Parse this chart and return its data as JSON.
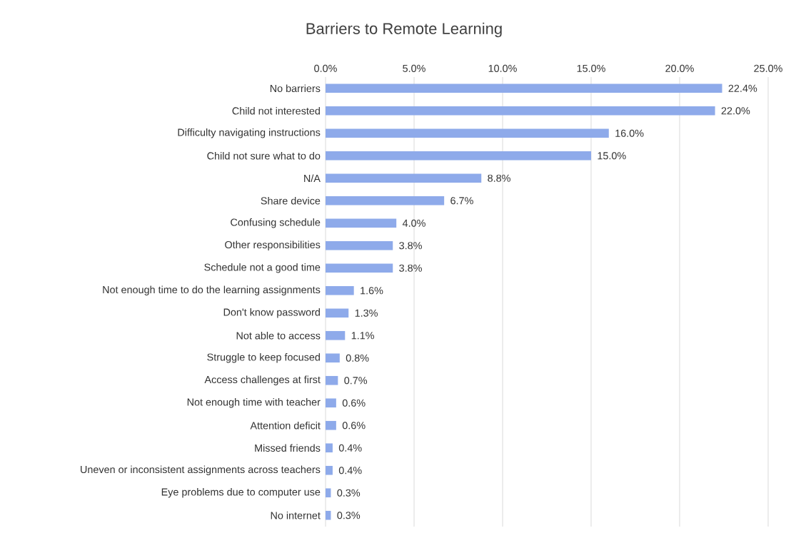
{
  "chart_data": {
    "type": "bar",
    "orientation": "horizontal",
    "title": "Barriers to Remote Learning",
    "categories": [
      "No barriers",
      "Child not interested",
      "Difficulty navigating instructions",
      "Child not sure what to do",
      "N/A",
      "Share device",
      "Confusing schedule",
      "Other responsibilities",
      "Schedule not a good time",
      "Not enough time to do the learning assignments",
      "Don't know password",
      "Not able to access",
      "Struggle to keep focused",
      "Access challenges at first",
      "Not enough time with teacher",
      "Attention deficit",
      "Missed friends",
      "Uneven or inconsistent assignments across teachers",
      "Eye problems due to computer use",
      "No internet"
    ],
    "values": [
      22.4,
      22.0,
      16.0,
      15.0,
      8.8,
      6.7,
      4.0,
      3.8,
      3.8,
      1.6,
      1.3,
      1.1,
      0.8,
      0.7,
      0.6,
      0.6,
      0.4,
      0.4,
      0.3,
      0.3
    ],
    "value_labels": [
      "22.4%",
      "22.0%",
      "16.0%",
      "15.0%",
      "8.8%",
      "6.7%",
      "4.0%",
      "3.8%",
      "3.8%",
      "1.6%",
      "1.3%",
      "1.1%",
      "0.8%",
      "0.7%",
      "0.6%",
      "0.6%",
      "0.4%",
      "0.4%",
      "0.3%",
      "0.3%"
    ],
    "color": "#8eaaea",
    "xlim": [
      0,
      25
    ],
    "xticks": [
      {
        "value": 0,
        "label": "0.0%"
      },
      {
        "value": 5,
        "label": "5.0%"
      },
      {
        "value": 10,
        "label": "10.0%"
      },
      {
        "value": 15,
        "label": "15.0%"
      },
      {
        "value": 20,
        "label": "20.0%"
      },
      {
        "value": 25,
        "label": "25.0%"
      }
    ],
    "grid": "x"
  }
}
